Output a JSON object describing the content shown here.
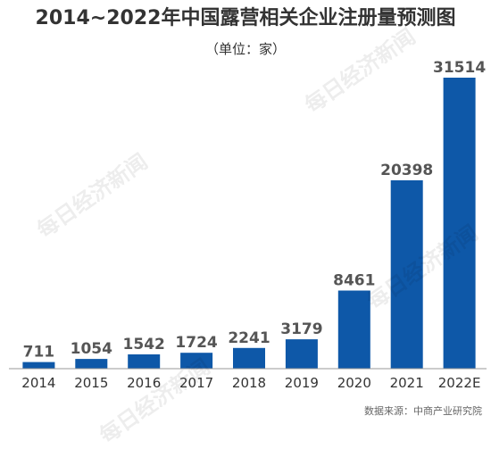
{
  "chart_data": {
    "type": "bar",
    "title": "2014~2022年中国露营相关企业注册量预测图",
    "subtitle": "（单位：家）",
    "categories": [
      "2014",
      "2015",
      "2016",
      "2017",
      "2018",
      "2019",
      "2020",
      "2021",
      "2022E"
    ],
    "values": [
      711,
      1054,
      1542,
      1724,
      2241,
      3179,
      8461,
      20398,
      31514
    ],
    "ylim": [
      0,
      31514
    ],
    "grid": false,
    "legend": "none",
    "bar_color": "#0e58a8"
  },
  "source": "数据来源：中商产业研究院",
  "watermark": "每日经济新闻"
}
